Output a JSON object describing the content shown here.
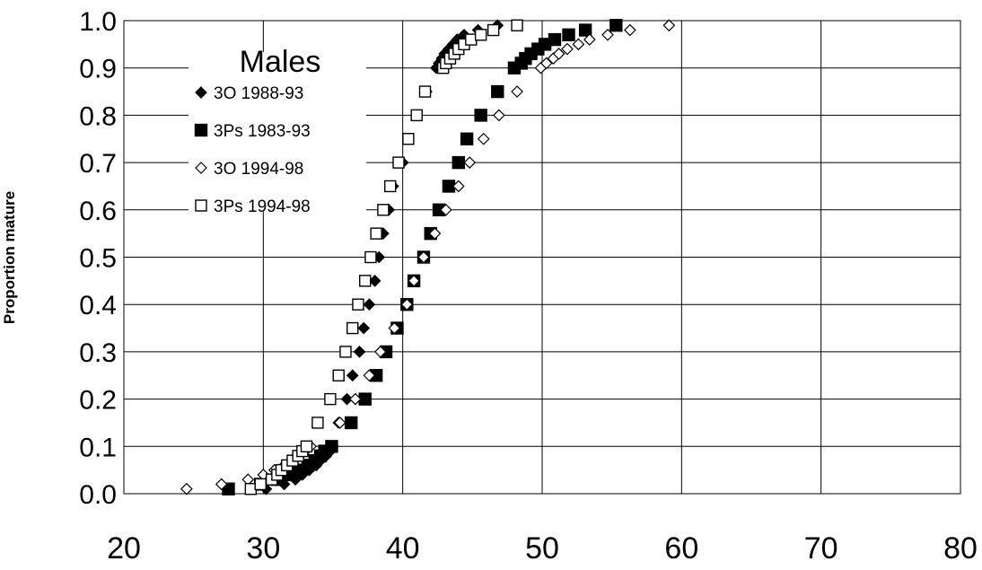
{
  "chart_data": {
    "type": "scatter",
    "ylabel": "Proportion mature",
    "xlabel": "",
    "xlim": [
      20,
      80
    ],
    "ylim": [
      0.0,
      1.0
    ],
    "xticks": [
      "20",
      "30",
      "40",
      "50",
      "60",
      "70",
      "80"
    ],
    "yticks": [
      "0.0",
      "0.1",
      "0.2",
      "0.3",
      "0.4",
      "0.5",
      "0.6",
      "0.7",
      "0.8",
      "0.9",
      "1.0"
    ],
    "grid": true,
    "legend": {
      "title": "Males",
      "placement": "top-left"
    },
    "series": [
      {
        "name": "3O 1988-93",
        "marker": "filled-diamond",
        "points": [
          [
            30.2,
            0.01
          ],
          [
            31.5,
            0.02
          ],
          [
            32.3,
            0.03
          ],
          [
            32.8,
            0.04
          ],
          [
            33.3,
            0.05
          ],
          [
            33.8,
            0.06
          ],
          [
            34.1,
            0.07
          ],
          [
            34.5,
            0.08
          ],
          [
            34.8,
            0.09
          ],
          [
            35.0,
            0.1
          ],
          [
            35.4,
            0.15
          ],
          [
            36.0,
            0.2
          ],
          [
            36.4,
            0.25
          ],
          [
            36.9,
            0.3
          ],
          [
            37.2,
            0.35
          ],
          [
            37.6,
            0.4
          ],
          [
            38.0,
            0.45
          ],
          [
            38.3,
            0.5
          ],
          [
            38.6,
            0.55
          ],
          [
            39.0,
            0.6
          ],
          [
            39.3,
            0.65
          ],
          [
            40.0,
            0.7
          ],
          [
            40.4,
            0.75
          ],
          [
            41.0,
            0.8
          ],
          [
            41.7,
            0.85
          ],
          [
            42.4,
            0.9
          ],
          [
            42.6,
            0.91
          ],
          [
            42.8,
            0.92
          ],
          [
            43.0,
            0.93
          ],
          [
            43.3,
            0.94
          ],
          [
            43.6,
            0.95
          ],
          [
            43.9,
            0.96
          ],
          [
            44.4,
            0.97
          ],
          [
            45.4,
            0.98
          ],
          [
            46.8,
            0.99
          ]
        ]
      },
      {
        "name": "3Ps 1983-93",
        "marker": "filled-square",
        "points": [
          [
            27.5,
            0.01
          ],
          [
            29.8,
            0.02
          ],
          [
            31.0,
            0.03
          ],
          [
            31.8,
            0.04
          ],
          [
            32.6,
            0.05
          ],
          [
            33.2,
            0.06
          ],
          [
            33.7,
            0.07
          ],
          [
            34.1,
            0.08
          ],
          [
            34.4,
            0.09
          ],
          [
            34.9,
            0.1
          ],
          [
            36.3,
            0.15
          ],
          [
            37.3,
            0.2
          ],
          [
            38.1,
            0.25
          ],
          [
            38.8,
            0.3
          ],
          [
            39.6,
            0.35
          ],
          [
            40.3,
            0.4
          ],
          [
            40.8,
            0.45
          ],
          [
            41.5,
            0.5
          ],
          [
            42.0,
            0.55
          ],
          [
            42.6,
            0.6
          ],
          [
            43.3,
            0.65
          ],
          [
            44.0,
            0.7
          ],
          [
            44.6,
            0.75
          ],
          [
            45.6,
            0.8
          ],
          [
            46.8,
            0.85
          ],
          [
            48.0,
            0.9
          ],
          [
            48.5,
            0.91
          ],
          [
            48.8,
            0.92
          ],
          [
            49.2,
            0.93
          ],
          [
            49.7,
            0.94
          ],
          [
            50.2,
            0.95
          ],
          [
            50.9,
            0.96
          ],
          [
            51.9,
            0.97
          ],
          [
            53.1,
            0.98
          ],
          [
            55.3,
            0.99
          ]
        ]
      },
      {
        "name": "3O 1994-98",
        "marker": "open-diamond",
        "points": [
          [
            24.5,
            0.01
          ],
          [
            27.0,
            0.02
          ],
          [
            28.9,
            0.03
          ],
          [
            30.0,
            0.04
          ],
          [
            30.8,
            0.05
          ],
          [
            31.5,
            0.06
          ],
          [
            32.0,
            0.07
          ],
          [
            32.4,
            0.08
          ],
          [
            33.0,
            0.09
          ],
          [
            33.4,
            0.1
          ],
          [
            35.5,
            0.15
          ],
          [
            36.6,
            0.2
          ],
          [
            37.6,
            0.25
          ],
          [
            38.4,
            0.3
          ],
          [
            39.4,
            0.35
          ],
          [
            40.3,
            0.4
          ],
          [
            40.8,
            0.45
          ],
          [
            41.5,
            0.5
          ],
          [
            42.3,
            0.55
          ],
          [
            43.1,
            0.6
          ],
          [
            44.0,
            0.65
          ],
          [
            44.8,
            0.7
          ],
          [
            45.8,
            0.75
          ],
          [
            46.9,
            0.8
          ],
          [
            48.2,
            0.85
          ],
          [
            49.9,
            0.9
          ],
          [
            50.3,
            0.91
          ],
          [
            50.8,
            0.92
          ],
          [
            51.2,
            0.93
          ],
          [
            51.8,
            0.94
          ],
          [
            52.6,
            0.95
          ],
          [
            53.4,
            0.96
          ],
          [
            54.7,
            0.97
          ],
          [
            56.3,
            0.98
          ],
          [
            59.1,
            0.99
          ]
        ]
      },
      {
        "name": "3Ps 1994-98",
        "marker": "open-square",
        "points": [
          [
            29.1,
            0.01
          ],
          [
            29.8,
            0.02
          ],
          [
            30.6,
            0.03
          ],
          [
            31.0,
            0.04
          ],
          [
            31.3,
            0.05
          ],
          [
            31.7,
            0.06
          ],
          [
            32.1,
            0.07
          ],
          [
            32.5,
            0.08
          ],
          [
            32.8,
            0.09
          ],
          [
            33.1,
            0.1
          ],
          [
            33.9,
            0.15
          ],
          [
            34.8,
            0.2
          ],
          [
            35.4,
            0.25
          ],
          [
            35.9,
            0.3
          ],
          [
            36.4,
            0.35
          ],
          [
            36.8,
            0.4
          ],
          [
            37.3,
            0.45
          ],
          [
            37.7,
            0.5
          ],
          [
            38.1,
            0.55
          ],
          [
            38.6,
            0.6
          ],
          [
            39.1,
            0.65
          ],
          [
            39.7,
            0.7
          ],
          [
            40.4,
            0.75
          ],
          [
            41.0,
            0.8
          ],
          [
            41.6,
            0.85
          ],
          [
            42.9,
            0.9
          ],
          [
            43.1,
            0.91
          ],
          [
            43.4,
            0.92
          ],
          [
            43.7,
            0.93
          ],
          [
            44.0,
            0.94
          ],
          [
            44.4,
            0.95
          ],
          [
            44.9,
            0.96
          ],
          [
            45.6,
            0.97
          ],
          [
            46.5,
            0.98
          ],
          [
            48.2,
            0.99
          ]
        ]
      }
    ]
  }
}
